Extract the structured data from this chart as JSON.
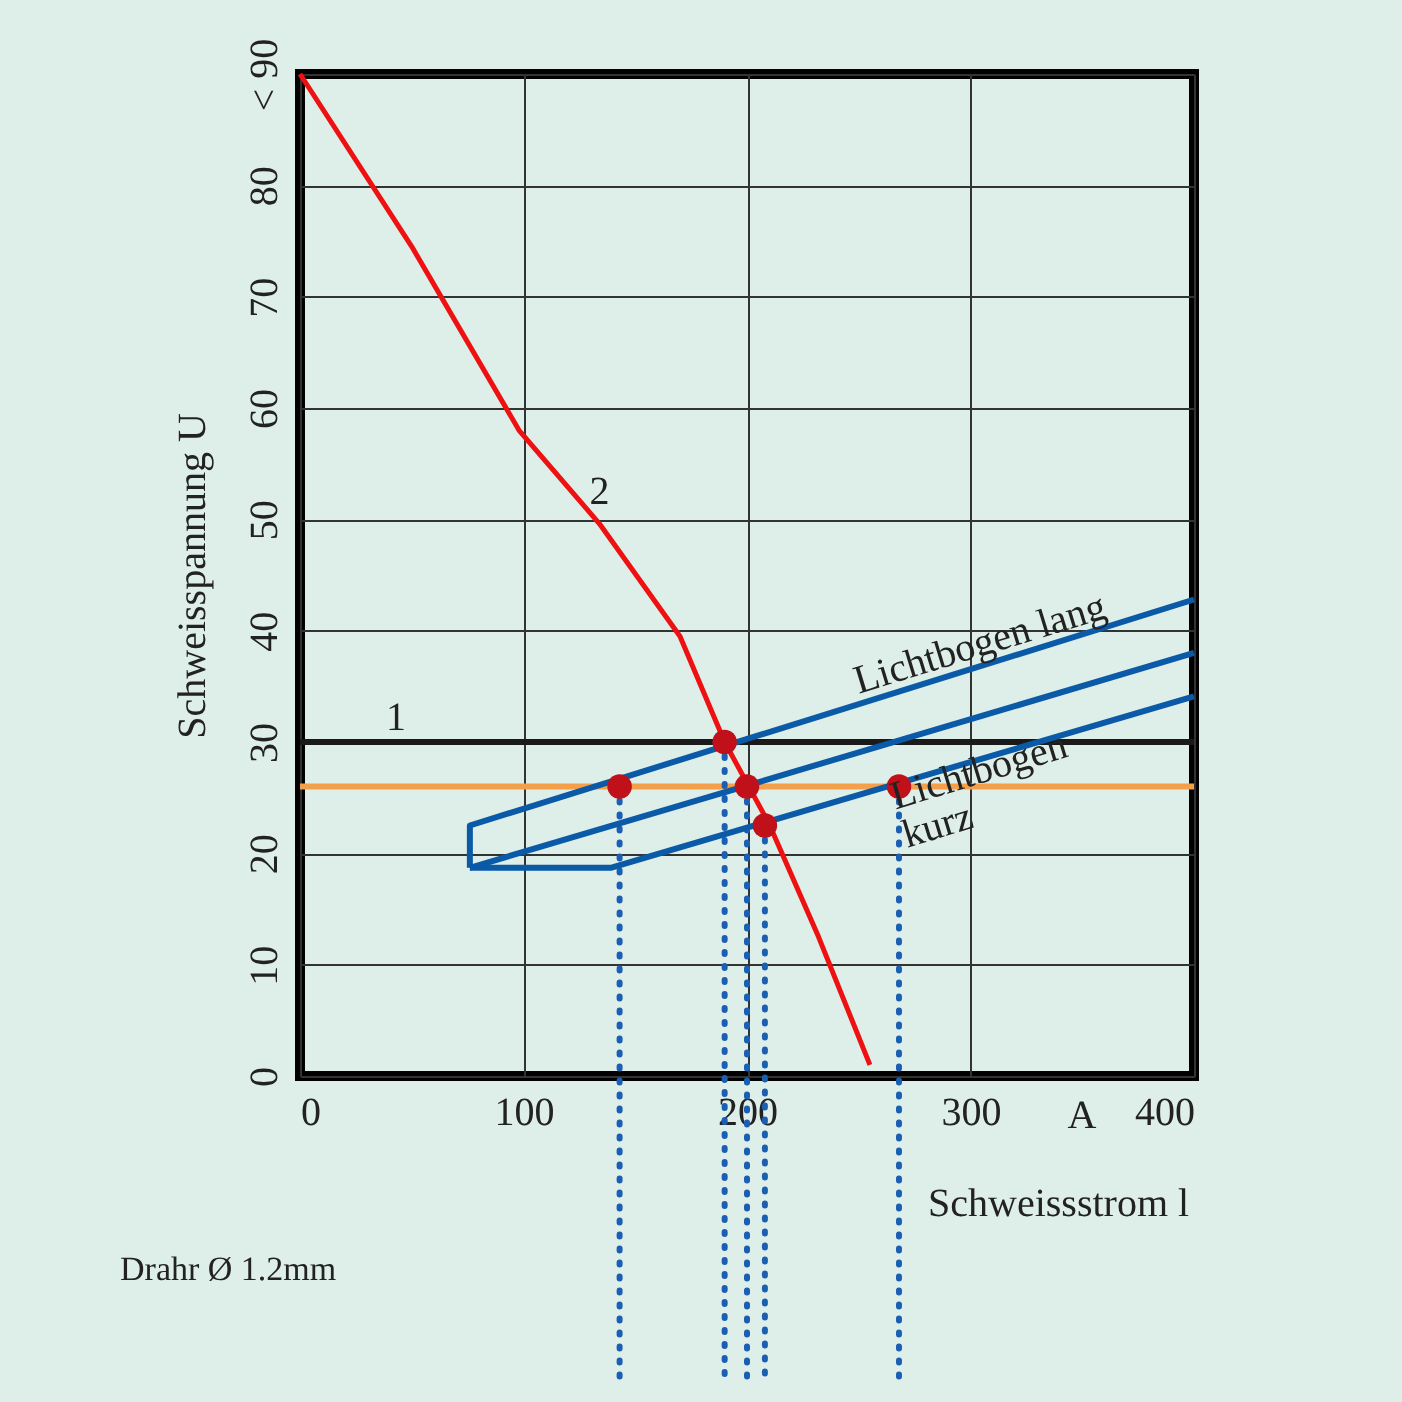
{
  "chart_data": {
    "type": "line",
    "xlabel": "Schweissstrom l",
    "ylabel": "Schweisspannung U",
    "xlim": [
      0,
      400
    ],
    "xticks": [
      0,
      100,
      200,
      300,
      400
    ],
    "ylim": [
      0,
      90
    ],
    "yticks": [
      0,
      10,
      20,
      30,
      40,
      50,
      60,
      70,
      80,
      {
        "value": 90,
        "label": "< 90"
      }
    ],
    "grid": true,
    "series": [
      {
        "name": "2",
        "color": "#ee1111",
        "x": [
          0,
          50,
          98,
          134,
          170,
          190,
          210,
          232,
          255
        ],
        "values": [
          90,
          74.5,
          58,
          49.6,
          39.5,
          30,
          22.6,
          12.5,
          1
        ]
      },
      {
        "name": "1",
        "color": "#1a1a1a",
        "x": [
          0,
          400
        ],
        "values": [
          30,
          30
        ]
      },
      {
        "color": "#0a5aa8",
        "x": [
          76,
          76,
          400
        ],
        "values": [
          18.7,
          22.5,
          42.8
        ]
      },
      {
        "color": "#0a5aa8",
        "x": [
          76,
          400
        ],
        "values": [
          18.7,
          38
        ]
      },
      {
        "color": "#0a5aa8",
        "x": [
          76,
          139,
          400
        ],
        "values": [
          18.7,
          18.7,
          34.1
        ]
      },
      {
        "type": "scatter",
        "color": "#c0101a",
        "x": [
          143,
          190,
          200,
          208,
          268
        ],
        "values": [
          26,
          30,
          26,
          22.5,
          26
        ]
      }
    ],
    "ref_lines": [
      {
        "axis": "y",
        "value": 26,
        "color": "#f4a04a"
      },
      {
        "axis": "x",
        "value": 143,
        "color": "#1a5fb4",
        "line_style": "dotted"
      },
      {
        "axis": "x",
        "value": 190,
        "color": "#1a5fb4",
        "line_style": "dotted"
      },
      {
        "axis": "x",
        "value": 200,
        "color": "#1a5fb4",
        "line_style": "dotted"
      },
      {
        "axis": "x",
        "value": 208,
        "color": "#1a5fb4",
        "line_style": "dotted"
      },
      {
        "axis": "x",
        "value": 268,
        "color": "#1a5fb4",
        "line_style": "dotted"
      }
    ],
    "annotations": [
      "Lichtbogen lang",
      "Lichtbogen\nkurz",
      "Drahr Ø 1.2mm",
      "A"
    ]
  }
}
